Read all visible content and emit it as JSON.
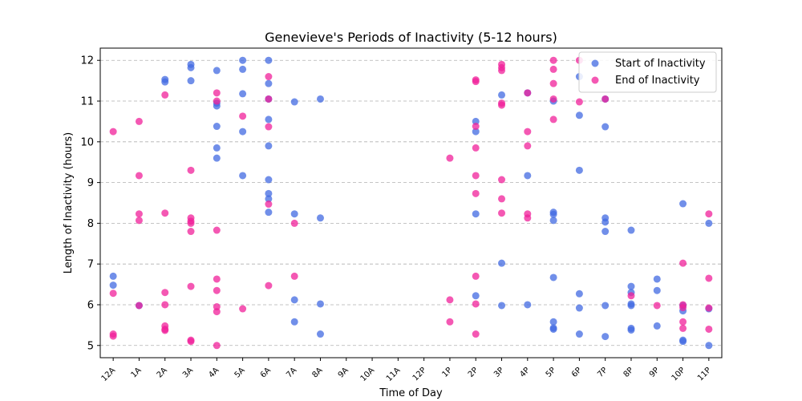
{
  "chart_data": {
    "type": "scatter",
    "title": "Genevieve's Periods of Inactivity (5-12 hours)",
    "xlabel": "Time of Day",
    "ylabel": "Length of Inactivity (hours)",
    "x_categories": [
      "12A",
      "1A",
      "2A",
      "3A",
      "4A",
      "5A",
      "6A",
      "7A",
      "8A",
      "9A",
      "10A",
      "11A",
      "12P",
      "1P",
      "2P",
      "3P",
      "4P",
      "5P",
      "6P",
      "7P",
      "8P",
      "9P",
      "10P",
      "11P"
    ],
    "xlim": [
      -0.5,
      23.5
    ],
    "ylim": [
      4.7,
      12.3
    ],
    "yticks": [
      5,
      6,
      7,
      8,
      9,
      10,
      11,
      12
    ],
    "grid": "y-dashed",
    "legend_position": "top-right",
    "series": [
      {
        "name": "Start of Inactivity",
        "color": "#4169E1",
        "points": [
          [
            0,
            6.7
          ],
          [
            0,
            6.48
          ],
          [
            1,
            5.98
          ],
          [
            2,
            11.53
          ],
          [
            2,
            11.47
          ],
          [
            3,
            11.9
          ],
          [
            3,
            11.82
          ],
          [
            3,
            11.5
          ],
          [
            4,
            11.75
          ],
          [
            4,
            10.95
          ],
          [
            4,
            10.88
          ],
          [
            4,
            10.38
          ],
          [
            4,
            9.85
          ],
          [
            4,
            9.6
          ],
          [
            5,
            12.0
          ],
          [
            5,
            11.78
          ],
          [
            5,
            11.18
          ],
          [
            5,
            10.25
          ],
          [
            5,
            9.17
          ],
          [
            6,
            12.0
          ],
          [
            6,
            11.43
          ],
          [
            6,
            11.05
          ],
          [
            6,
            10.55
          ],
          [
            6,
            9.9
          ],
          [
            6,
            9.07
          ],
          [
            6,
            8.73
          ],
          [
            6,
            8.6
          ],
          [
            6,
            8.27
          ],
          [
            7,
            10.98
          ],
          [
            7,
            8.23
          ],
          [
            7,
            6.12
          ],
          [
            7,
            5.58
          ],
          [
            8,
            11.05
          ],
          [
            8,
            8.13
          ],
          [
            8,
            6.02
          ],
          [
            8,
            5.28
          ],
          [
            14,
            10.5
          ],
          [
            14,
            10.25
          ],
          [
            14,
            8.23
          ],
          [
            14,
            6.22
          ],
          [
            15,
            11.15
          ],
          [
            15,
            7.02
          ],
          [
            15,
            5.98
          ],
          [
            16,
            11.2
          ],
          [
            16,
            9.17
          ],
          [
            16,
            6.0
          ],
          [
            17,
            11.0
          ],
          [
            17,
            8.27
          ],
          [
            17,
            8.22
          ],
          [
            17,
            8.07
          ],
          [
            17,
            6.67
          ],
          [
            17,
            5.58
          ],
          [
            17,
            5.43
          ],
          [
            17,
            5.4
          ],
          [
            18,
            11.6
          ],
          [
            18,
            10.65
          ],
          [
            18,
            9.3
          ],
          [
            18,
            6.27
          ],
          [
            18,
            5.92
          ],
          [
            18,
            5.28
          ],
          [
            19,
            11.05
          ],
          [
            19,
            10.37
          ],
          [
            19,
            8.13
          ],
          [
            19,
            8.03
          ],
          [
            19,
            7.8
          ],
          [
            19,
            5.98
          ],
          [
            19,
            5.22
          ],
          [
            20,
            7.83
          ],
          [
            20,
            6.45
          ],
          [
            20,
            6.3
          ],
          [
            20,
            6.02
          ],
          [
            20,
            5.98
          ],
          [
            20,
            5.42
          ],
          [
            20,
            5.38
          ],
          [
            21,
            6.63
          ],
          [
            21,
            6.35
          ],
          [
            21,
            5.48
          ],
          [
            22,
            8.48
          ],
          [
            22,
            5.98
          ],
          [
            22,
            5.85
          ],
          [
            22,
            5.13
          ],
          [
            22,
            5.1
          ],
          [
            23,
            8.0
          ],
          [
            23,
            5.9
          ],
          [
            23,
            5.0
          ]
        ]
      },
      {
        "name": "End of Inactivity",
        "color": "#F0209A",
        "points": [
          [
            0,
            10.25
          ],
          [
            0,
            6.28
          ],
          [
            0,
            5.28
          ],
          [
            0,
            5.23
          ],
          [
            1,
            10.5
          ],
          [
            1,
            9.17
          ],
          [
            1,
            8.23
          ],
          [
            1,
            8.07
          ],
          [
            1,
            5.98
          ],
          [
            2,
            11.15
          ],
          [
            2,
            8.25
          ],
          [
            2,
            6.3
          ],
          [
            2,
            6.0
          ],
          [
            2,
            5.48
          ],
          [
            2,
            5.4
          ],
          [
            2,
            5.37
          ],
          [
            3,
            9.3
          ],
          [
            3,
            8.13
          ],
          [
            3,
            8.05
          ],
          [
            3,
            8.0
          ],
          [
            3,
            7.8
          ],
          [
            3,
            6.45
          ],
          [
            3,
            5.13
          ],
          [
            3,
            5.1
          ],
          [
            4,
            11.2
          ],
          [
            4,
            11.0
          ],
          [
            4,
            7.83
          ],
          [
            4,
            6.63
          ],
          [
            4,
            6.35
          ],
          [
            4,
            5.95
          ],
          [
            4,
            5.83
          ],
          [
            4,
            5.0
          ],
          [
            5,
            10.63
          ],
          [
            5,
            5.9
          ],
          [
            6,
            11.6
          ],
          [
            6,
            11.05
          ],
          [
            6,
            10.37
          ],
          [
            6,
            8.47
          ],
          [
            6,
            6.47
          ],
          [
            7,
            8.0
          ],
          [
            7,
            6.7
          ],
          [
            13,
            9.6
          ],
          [
            13,
            6.12
          ],
          [
            13,
            5.58
          ],
          [
            14,
            11.52
          ],
          [
            14,
            11.48
          ],
          [
            14,
            10.38
          ],
          [
            14,
            9.85
          ],
          [
            14,
            9.17
          ],
          [
            14,
            8.73
          ],
          [
            14,
            6.7
          ],
          [
            14,
            6.02
          ],
          [
            14,
            5.28
          ],
          [
            15,
            11.9
          ],
          [
            15,
            11.82
          ],
          [
            15,
            11.75
          ],
          [
            15,
            10.95
          ],
          [
            15,
            10.9
          ],
          [
            15,
            9.07
          ],
          [
            15,
            8.6
          ],
          [
            15,
            8.25
          ],
          [
            16,
            11.2
          ],
          [
            16,
            10.25
          ],
          [
            16,
            9.9
          ],
          [
            16,
            8.23
          ],
          [
            16,
            8.13
          ],
          [
            17,
            12.0
          ],
          [
            17,
            11.78
          ],
          [
            17,
            11.43
          ],
          [
            17,
            11.05
          ],
          [
            17,
            10.55
          ],
          [
            18,
            12.0
          ],
          [
            18,
            10.98
          ],
          [
            19,
            11.05
          ],
          [
            20,
            6.22
          ],
          [
            21,
            5.98
          ],
          [
            22,
            7.02
          ],
          [
            22,
            6.0
          ],
          [
            22,
            5.93
          ],
          [
            22,
            5.58
          ],
          [
            22,
            5.42
          ],
          [
            23,
            8.23
          ],
          [
            23,
            6.65
          ],
          [
            23,
            5.92
          ],
          [
            23,
            5.4
          ]
        ]
      }
    ]
  }
}
